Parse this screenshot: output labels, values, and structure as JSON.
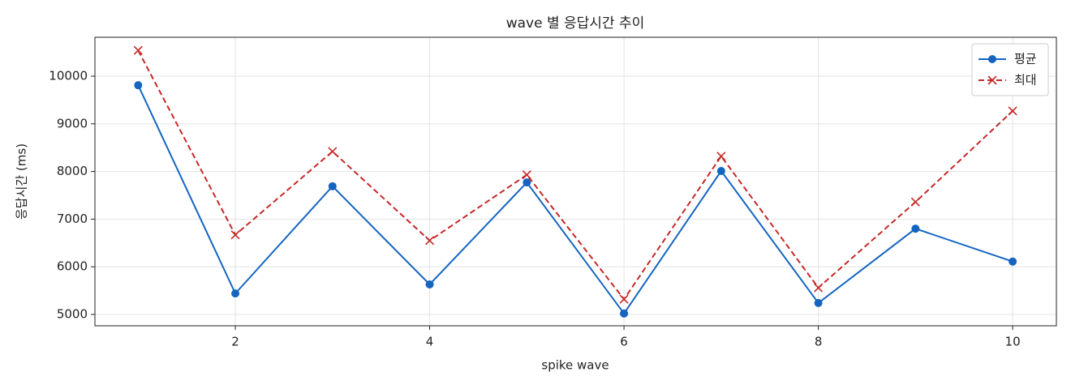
{
  "chart_data": {
    "type": "line",
    "title": "wave 별 응답시간 추이",
    "x_label": "spike wave",
    "y_label": "응답시간 (ms)",
    "x": [
      1,
      2,
      3,
      4,
      5,
      6,
      7,
      8,
      9,
      10
    ],
    "series": [
      {
        "name": "평균",
        "color": "#1565c0",
        "linestyle": "solid",
        "marker": "o",
        "values": [
          9810,
          5440,
          7690,
          5630,
          7770,
          5020,
          8010,
          5240,
          6800,
          6110
        ]
      },
      {
        "name": "최대",
        "color": "#c62828",
        "linestyle": "dashed",
        "marker": "x",
        "values": [
          10540,
          6670,
          8420,
          6550,
          7930,
          5320,
          8320,
          5560,
          7360,
          9270
        ]
      }
    ],
    "xlim": [
      0.555,
      10.45
    ],
    "xticks": [
      2,
      4,
      6,
      8,
      10
    ],
    "ylim": [
      4762,
      10816
    ],
    "yticks": [
      5000,
      6000,
      7000,
      8000,
      9000,
      10000
    ],
    "grid": true,
    "legend": "upper right"
  }
}
